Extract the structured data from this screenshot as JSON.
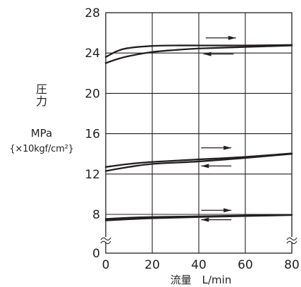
{
  "chart_data": {
    "type": "line",
    "ylabel": [
      "圧",
      "力"
    ],
    "ylabel_unit": "MPa",
    "ylabel_unit_sub": "{×10kgf/cm²}",
    "xlabel": "流量　L/min",
    "xlim": [
      0,
      80
    ],
    "ylim": [
      0,
      28
    ],
    "axis_break": "between 0 and 8 (wavy break marks on both vertical axes)",
    "x_ticks": [
      "0",
      "20",
      "40",
      "60",
      "80"
    ],
    "y_ticks": [
      "0",
      "8",
      "12",
      "16",
      "20",
      "24",
      "28"
    ],
    "grid": true,
    "series": [
      {
        "group": "high",
        "x": [
          0,
          5,
          10,
          20,
          30,
          40,
          60,
          80
        ],
        "y": [
          23.6,
          24.2,
          24.5,
          24.7,
          24.75,
          24.75,
          24.75,
          24.8
        ]
      },
      {
        "group": "high",
        "x": [
          0,
          5,
          10,
          20,
          30,
          40,
          60,
          80
        ],
        "y": [
          23.0,
          23.4,
          23.7,
          24.1,
          24.3,
          24.45,
          24.6,
          24.75
        ]
      },
      {
        "group": "mid",
        "x": [
          0,
          10,
          20,
          40,
          60,
          80
        ],
        "y": [
          12.7,
          13.0,
          13.2,
          13.45,
          13.7,
          14.05
        ]
      },
      {
        "group": "mid",
        "x": [
          0,
          10,
          20,
          40,
          60,
          80
        ],
        "y": [
          12.3,
          12.7,
          13.0,
          13.25,
          13.6,
          14.0
        ]
      },
      {
        "group": "low",
        "x": [
          0,
          10,
          20,
          40,
          60,
          80
        ],
        "y": [
          7.05,
          7.3,
          7.45,
          7.6,
          7.75,
          7.9
        ]
      },
      {
        "group": "low",
        "x": [
          0,
          10,
          20,
          40,
          60,
          80
        ],
        "y": [
          6.75,
          7.0,
          7.2,
          7.45,
          7.65,
          7.85
        ]
      }
    ],
    "annotations": [
      {
        "type": "arrow",
        "direction": "right",
        "x_range": [
          43,
          56
        ],
        "y": 25.5
      },
      {
        "type": "arrow",
        "direction": "left",
        "x_range": [
          42,
          55
        ],
        "y": 23.9
      },
      {
        "type": "arrow",
        "direction": "right",
        "x_range": [
          41,
          54
        ],
        "y": 14.6
      },
      {
        "type": "arrow",
        "direction": "left",
        "x_range": [
          41,
          54
        ],
        "y": 12.8
      },
      {
        "type": "arrow",
        "direction": "right",
        "x_range": [
          41,
          54
        ],
        "y": 8.4
      },
      {
        "type": "arrow",
        "direction": "left",
        "x_range": [
          41,
          54
        ],
        "y": 6.9
      }
    ]
  }
}
